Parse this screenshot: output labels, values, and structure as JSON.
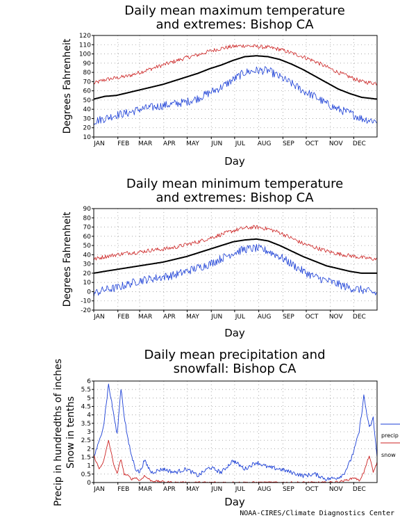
{
  "credit": "NOAA-CIRES/Climate Diagnostics Center",
  "colors": {
    "extreme_high": "#cc2222",
    "extreme_low": "#1a3ed6",
    "mean": "#000000",
    "precip": "#1a3ed6",
    "snow": "#cc2222",
    "grid": "#9a9a9a"
  },
  "months": [
    "JAN",
    "FEB",
    "MAR",
    "APR",
    "MAY",
    "JUN",
    "JUL",
    "AUG",
    "SEP",
    "OCT",
    "NOV",
    "DEC"
  ],
  "chart_data": [
    {
      "type": "line",
      "title_line1": "Daily mean maximum temperature",
      "title_line2": "and extremes: Bishop CA",
      "xlabel": "Day",
      "ylabel": "Degrees Fahrenheit",
      "ylim": [
        10,
        120
      ],
      "yticks": [
        10,
        20,
        30,
        40,
        50,
        60,
        70,
        80,
        90,
        100,
        110,
        120
      ],
      "grid": true,
      "series": [
        {
          "role": "max_extreme",
          "x": [
            1,
            15,
            30,
            45,
            60,
            75,
            90,
            105,
            120,
            135,
            150,
            165,
            180,
            195,
            210,
            225,
            240,
            255,
            270,
            285,
            300,
            315,
            330,
            345,
            365
          ],
          "values": [
            68,
            72,
            74,
            76,
            80,
            84,
            88,
            92,
            96,
            99,
            103,
            106,
            108,
            109,
            108,
            107,
            105,
            101,
            97,
            92,
            86,
            80,
            75,
            70,
            68
          ]
        },
        {
          "role": "mean",
          "x": [
            1,
            15,
            30,
            45,
            60,
            75,
            90,
            105,
            120,
            135,
            150,
            165,
            180,
            195,
            210,
            225,
            240,
            255,
            270,
            285,
            300,
            315,
            330,
            345,
            365
          ],
          "values": [
            51,
            54,
            55,
            58,
            61,
            64,
            67,
            71,
            75,
            79,
            84,
            88,
            93,
            97,
            98,
            97,
            94,
            89,
            83,
            76,
            69,
            62,
            57,
            53,
            51
          ]
        },
        {
          "role": "min_extreme",
          "x": [
            1,
            15,
            30,
            45,
            60,
            75,
            90,
            105,
            120,
            135,
            150,
            165,
            180,
            195,
            210,
            225,
            240,
            255,
            270,
            285,
            300,
            315,
            330,
            345,
            365
          ],
          "values": [
            27,
            30,
            34,
            36,
            40,
            42,
            44,
            46,
            48,
            52,
            58,
            64,
            72,
            80,
            82,
            82,
            75,
            68,
            60,
            54,
            46,
            40,
            36,
            30,
            27
          ]
        }
      ]
    },
    {
      "type": "line",
      "title_line1": "Daily mean minimum temperature",
      "title_line2": "and extremes: Bishop CA",
      "xlabel": "Day",
      "ylabel": "Degrees Fahrenheit",
      "ylim": [
        -20,
        90
      ],
      "yticks": [
        -20,
        -10,
        0,
        10,
        20,
        30,
        40,
        50,
        60,
        70,
        80,
        90
      ],
      "grid": true,
      "series": [
        {
          "role": "max_extreme",
          "x": [
            1,
            15,
            30,
            45,
            60,
            75,
            90,
            105,
            120,
            135,
            150,
            165,
            180,
            195,
            210,
            225,
            240,
            255,
            270,
            285,
            300,
            315,
            330,
            345,
            365
          ],
          "values": [
            35,
            38,
            40,
            42,
            43,
            45,
            46,
            48,
            51,
            54,
            58,
            62,
            66,
            69,
            70,
            68,
            64,
            58,
            52,
            48,
            44,
            41,
            39,
            37,
            35
          ]
        },
        {
          "role": "mean",
          "x": [
            1,
            15,
            30,
            45,
            60,
            75,
            90,
            105,
            120,
            135,
            150,
            165,
            180,
            195,
            210,
            225,
            240,
            255,
            270,
            285,
            300,
            315,
            330,
            345,
            365
          ],
          "values": [
            20,
            22,
            24,
            26,
            28,
            30,
            32,
            35,
            38,
            42,
            46,
            50,
            54,
            56,
            57,
            55,
            50,
            44,
            38,
            33,
            28,
            25,
            22,
            20,
            20
          ]
        },
        {
          "role": "min_extreme",
          "x": [
            1,
            15,
            30,
            45,
            60,
            75,
            90,
            105,
            120,
            135,
            150,
            165,
            180,
            195,
            210,
            225,
            240,
            255,
            270,
            285,
            300,
            315,
            330,
            345,
            365
          ],
          "values": [
            -2,
            2,
            4,
            8,
            12,
            14,
            16,
            18,
            22,
            26,
            30,
            36,
            42,
            46,
            47,
            44,
            38,
            30,
            22,
            16,
            12,
            8,
            4,
            2,
            -2
          ]
        }
      ]
    },
    {
      "type": "line",
      "title_line1": "Daily mean precipitation and",
      "title_line2": "snowfall: Bishop CA",
      "xlabel": "Day",
      "ylabel_line1": "Precip in hundredths of inches",
      "ylabel_line2": "Snow in tenths",
      "ylim": [
        0,
        6
      ],
      "yticks": [
        "0",
        "0.5",
        "1",
        "1.5",
        "2",
        "2.5",
        "3",
        "3.5",
        "4",
        "4.5",
        "5",
        "5.5",
        "6"
      ],
      "grid": true,
      "legend": {
        "precip": "precip",
        "snow": "snow",
        "placement": "right"
      },
      "series": [
        {
          "name": "precip",
          "role": "precip",
          "x": [
            1,
            8,
            14,
            20,
            26,
            31,
            36,
            40,
            45,
            50,
            55,
            60,
            66,
            75,
            90,
            105,
            120,
            135,
            150,
            165,
            180,
            195,
            210,
            225,
            240,
            255,
            270,
            285,
            300,
            315,
            322,
            330,
            336,
            342,
            348,
            355,
            360,
            365
          ],
          "values": [
            1.5,
            2.4,
            3.5,
            5.8,
            4.2,
            2.8,
            5.6,
            4.0,
            2.5,
            1.5,
            0.8,
            0.6,
            1.3,
            0.6,
            0.8,
            0.6,
            0.8,
            0.4,
            0.9,
            0.6,
            1.3,
            0.8,
            1.2,
            0.9,
            0.8,
            0.6,
            0.4,
            0.5,
            0.2,
            0.3,
            0.5,
            1.2,
            2.0,
            3.0,
            5.1,
            3.2,
            3.8,
            1.5
          ]
        },
        {
          "name": "snow",
          "role": "snow",
          "x": [
            1,
            8,
            14,
            20,
            26,
            31,
            36,
            40,
            45,
            50,
            55,
            60,
            66,
            75,
            90,
            105,
            120,
            135,
            150,
            165,
            180,
            195,
            210,
            225,
            240,
            255,
            270,
            285,
            300,
            315,
            322,
            330,
            336,
            342,
            348,
            355,
            360,
            365
          ],
          "values": [
            1.6,
            0.8,
            1.3,
            2.5,
            1.2,
            0.5,
            1.4,
            0.5,
            0.4,
            0.2,
            0.3,
            0.1,
            0.4,
            0.1,
            0.05,
            0,
            0,
            0,
            0,
            0,
            0,
            0,
            0,
            0,
            0,
            0,
            0,
            0,
            0,
            0.05,
            0.1,
            0.2,
            0.3,
            0.1,
            0.6,
            1.6,
            0.6,
            1.2
          ]
        }
      ]
    }
  ]
}
